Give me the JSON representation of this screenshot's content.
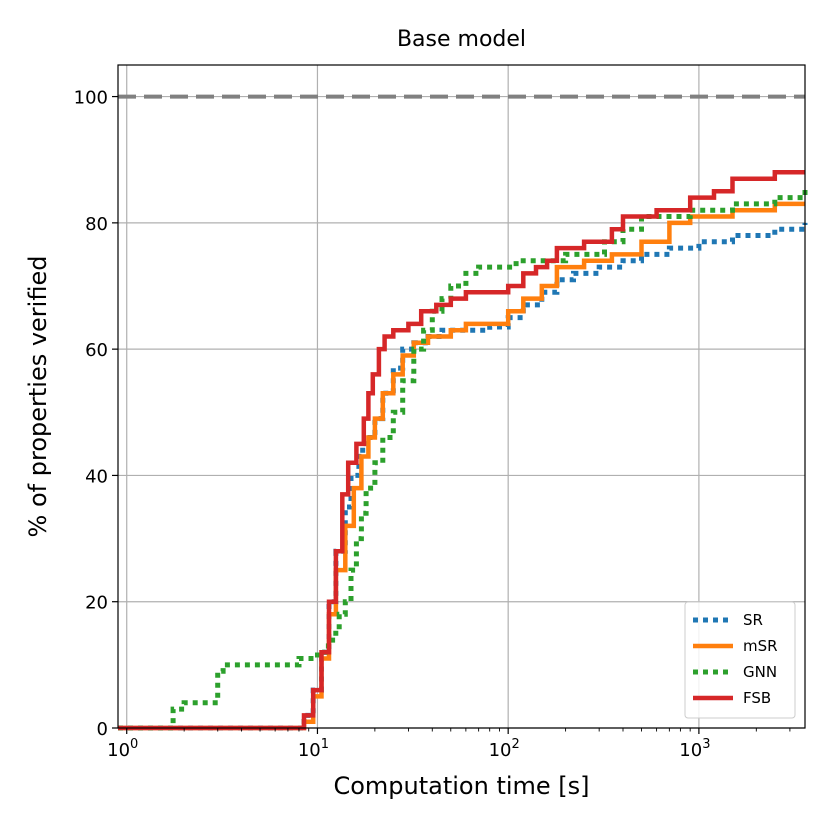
{
  "chart_data": {
    "type": "line",
    "title": "Base model",
    "xlabel": "Computation time [s]",
    "ylabel": "% of properties verified",
    "xscale": "log",
    "xlim": [
      0.9,
      3600
    ],
    "ylim": [
      0,
      105
    ],
    "xticks": [
      {
        "value": 1,
        "base": "10",
        "exp": "0"
      },
      {
        "value": 10,
        "base": "10",
        "exp": "1"
      },
      {
        "value": 100,
        "base": "10",
        "exp": "2"
      },
      {
        "value": 1000,
        "base": "10",
        "exp": "3"
      }
    ],
    "yticks": [
      0,
      20,
      40,
      60,
      80,
      100
    ],
    "grid": true,
    "legend_position": "lower-right",
    "reference_line": {
      "y": 100,
      "color": "#808080",
      "style": "dashed"
    },
    "series": [
      {
        "name": "SR",
        "color": "#1f77b4",
        "style": "dotted",
        "points": [
          [
            0.9,
            0
          ],
          [
            8,
            0
          ],
          [
            8.5,
            2
          ],
          [
            9.5,
            6
          ],
          [
            10.5,
            12
          ],
          [
            11.5,
            20
          ],
          [
            12.5,
            28
          ],
          [
            14,
            35
          ],
          [
            15,
            40
          ],
          [
            16.5,
            44
          ],
          [
            18,
            46
          ],
          [
            20,
            49
          ],
          [
            22,
            53
          ],
          [
            25,
            57
          ],
          [
            28,
            60
          ],
          [
            32,
            61
          ],
          [
            38,
            62
          ],
          [
            45,
            63
          ],
          [
            60,
            63
          ],
          [
            80,
            63.5
          ],
          [
            95,
            63.5
          ],
          [
            100,
            65
          ],
          [
            120,
            67
          ],
          [
            150,
            69
          ],
          [
            180,
            71
          ],
          [
            220,
            72
          ],
          [
            300,
            73
          ],
          [
            400,
            74
          ],
          [
            500,
            75
          ],
          [
            700,
            76
          ],
          [
            1000,
            77
          ],
          [
            1500,
            78
          ],
          [
            2500,
            79
          ],
          [
            3600,
            80
          ]
        ]
      },
      {
        "name": "mSR",
        "color": "#ff7f0e",
        "style": "solid",
        "points": [
          [
            0.9,
            0
          ],
          [
            8,
            0
          ],
          [
            8.5,
            1
          ],
          [
            9.5,
            5
          ],
          [
            10.5,
            11
          ],
          [
            11.5,
            18
          ],
          [
            12.5,
            25
          ],
          [
            14,
            32
          ],
          [
            15.5,
            38
          ],
          [
            17,
            43
          ],
          [
            18.5,
            46
          ],
          [
            20,
            49
          ],
          [
            22,
            53
          ],
          [
            25,
            56
          ],
          [
            28,
            59
          ],
          [
            32,
            61
          ],
          [
            38,
            62
          ],
          [
            50,
            63
          ],
          [
            60,
            64
          ],
          [
            85,
            64
          ],
          [
            100,
            66
          ],
          [
            120,
            68
          ],
          [
            150,
            70
          ],
          [
            180,
            73
          ],
          [
            250,
            74
          ],
          [
            350,
            75
          ],
          [
            500,
            77
          ],
          [
            700,
            80
          ],
          [
            900,
            81
          ],
          [
            1500,
            82
          ],
          [
            2500,
            83
          ],
          [
            3600,
            83
          ]
        ]
      },
      {
        "name": "GNN",
        "color": "#2ca02c",
        "style": "dotted",
        "points": [
          [
            0.9,
            0
          ],
          [
            1.75,
            0
          ],
          [
            1.75,
            3
          ],
          [
            2,
            4
          ],
          [
            2.5,
            4
          ],
          [
            3,
            9
          ],
          [
            3.2,
            10
          ],
          [
            6,
            10
          ],
          [
            7,
            10
          ],
          [
            8,
            11
          ],
          [
            9,
            11
          ],
          [
            10,
            12
          ],
          [
            11,
            13
          ],
          [
            12,
            15
          ],
          [
            13,
            18
          ],
          [
            14,
            20
          ],
          [
            15,
            25
          ],
          [
            16,
            30
          ],
          [
            17,
            34
          ],
          [
            18,
            38
          ],
          [
            20,
            42
          ],
          [
            22,
            46
          ],
          [
            25,
            50
          ],
          [
            28,
            55
          ],
          [
            32,
            60
          ],
          [
            36,
            63
          ],
          [
            40,
            66
          ],
          [
            45,
            68
          ],
          [
            50,
            70
          ],
          [
            60,
            72
          ],
          [
            70,
            73
          ],
          [
            90,
            73
          ],
          [
            110,
            74
          ],
          [
            150,
            74
          ],
          [
            200,
            75
          ],
          [
            250,
            75
          ],
          [
            320,
            77
          ],
          [
            400,
            79
          ],
          [
            500,
            81
          ],
          [
            900,
            82
          ],
          [
            1500,
            83
          ],
          [
            2500,
            84
          ],
          [
            3600,
            86
          ]
        ]
      },
      {
        "name": "FSB",
        "color": "#d62728",
        "style": "solid",
        "points": [
          [
            0.9,
            0
          ],
          [
            7.9,
            0
          ],
          [
            8.5,
            2
          ],
          [
            9.5,
            6
          ],
          [
            10.5,
            12
          ],
          [
            11.5,
            20
          ],
          [
            12.5,
            28
          ],
          [
            13.5,
            37
          ],
          [
            14.5,
            42
          ],
          [
            16,
            45
          ],
          [
            17.5,
            49
          ],
          [
            18.5,
            53
          ],
          [
            19.5,
            56
          ],
          [
            21,
            60
          ],
          [
            22.5,
            62
          ],
          [
            25,
            63
          ],
          [
            30,
            64
          ],
          [
            35,
            66
          ],
          [
            42,
            67
          ],
          [
            50,
            68
          ],
          [
            60,
            69
          ],
          [
            80,
            69
          ],
          [
            100,
            70
          ],
          [
            120,
            72
          ],
          [
            140,
            73
          ],
          [
            160,
            74
          ],
          [
            180,
            76
          ],
          [
            250,
            77
          ],
          [
            350,
            79
          ],
          [
            400,
            81
          ],
          [
            600,
            82
          ],
          [
            900,
            84
          ],
          [
            1200,
            85
          ],
          [
            1500,
            87
          ],
          [
            2500,
            88
          ],
          [
            3600,
            88
          ]
        ]
      }
    ]
  }
}
